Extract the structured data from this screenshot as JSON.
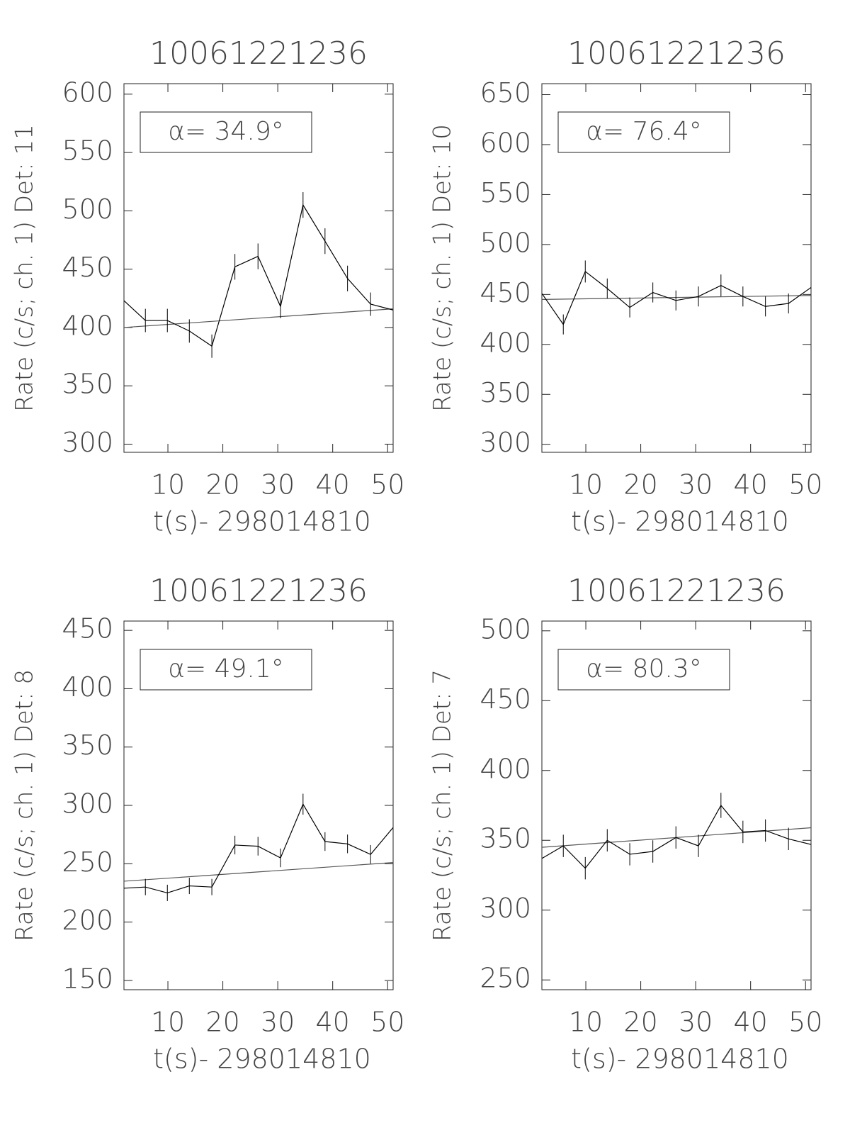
{
  "chart_data": [
    {
      "type": "line",
      "title": "10061221236",
      "y_label": "Rate (c/s; ch. 1) Det: 11",
      "x_label": "t(s)- 298014810",
      "annotation": "α= 34.9°",
      "xlim": [
        2,
        51
      ],
      "ylim": [
        293,
        609
      ],
      "xticks": [
        10,
        20,
        30,
        40,
        50
      ],
      "yticks": [
        300,
        350,
        400,
        450,
        500,
        550,
        600
      ],
      "x": [
        2,
        5.9,
        9.9,
        13.9,
        18,
        22.2,
        26.4,
        30.5,
        34.6,
        38.6,
        42.7,
        46.9,
        51
      ],
      "series": [
        {
          "color": "#000000",
          "values": [
            423,
            406,
            406,
            397,
            384,
            452,
            461,
            418,
            505,
            474,
            442,
            420,
            415
          ],
          "errors": [
            null,
            10,
            10,
            10,
            10,
            11,
            11,
            10,
            11,
            11,
            11,
            10,
            null
          ]
        }
      ],
      "fit": {
        "color": "#555555",
        "x": [
          2,
          51
        ],
        "values": [
          400,
          416
        ]
      }
    },
    {
      "type": "line",
      "title": "10061221236",
      "y_label": "Rate (c/s; ch. 1) Det: 10",
      "x_label": "t(s)- 298014810",
      "annotation": "α= 76.4°",
      "xlim": [
        2,
        51
      ],
      "ylim": [
        292,
        661
      ],
      "xticks": [
        10,
        20,
        30,
        40,
        50
      ],
      "yticks": [
        300,
        350,
        400,
        450,
        500,
        550,
        600,
        650
      ],
      "x": [
        2,
        5.9,
        9.9,
        13.9,
        18,
        22.2,
        26.4,
        30.5,
        34.6,
        38.6,
        42.7,
        46.9,
        51
      ],
      "series": [
        {
          "color": "#000000",
          "values": [
            451,
            420,
            473,
            456,
            437,
            452,
            444,
            448,
            459,
            448,
            438,
            441,
            457
          ],
          "errors": [
            null,
            10,
            11,
            10,
            10,
            10,
            10,
            10,
            11,
            10,
            10,
            10,
            null
          ]
        }
      ],
      "fit": {
        "color": "#555555",
        "x": [
          2,
          51
        ],
        "values": [
          445,
          449
        ]
      }
    },
    {
      "type": "line",
      "title": "10061221236",
      "y_label": "Rate (c/s; ch. 1) Det: 8",
      "x_label": "t(s)- 298014810",
      "annotation": "α= 49.1°",
      "xlim": [
        2,
        51
      ],
      "ylim": [
        142,
        458
      ],
      "xticks": [
        10,
        20,
        30,
        40,
        50
      ],
      "yticks": [
        150,
        200,
        250,
        300,
        350,
        400,
        450
      ],
      "x": [
        2,
        5.9,
        9.9,
        13.9,
        18,
        22.2,
        26.4,
        30.5,
        34.6,
        38.6,
        42.7,
        46.9,
        51
      ],
      "series": [
        {
          "color": "#000000",
          "values": [
            229,
            230,
            225,
            231,
            230,
            266,
            265,
            255,
            301,
            269,
            267,
            258,
            281
          ],
          "errors": [
            null,
            7,
            7,
            7,
            7,
            8,
            8,
            8,
            9,
            8,
            8,
            8,
            null
          ]
        }
      ],
      "fit": {
        "color": "#555555",
        "x": [
          2,
          51
        ],
        "values": [
          235,
          251
        ]
      }
    },
    {
      "type": "line",
      "title": "10061221236",
      "y_label": "Rate (c/s; ch. 1) Det: 7",
      "x_label": "t(s)- 298014810",
      "annotation": "α= 80.3°",
      "xlim": [
        2,
        51
      ],
      "ylim": [
        243,
        507
      ],
      "xticks": [
        10,
        20,
        30,
        40,
        50
      ],
      "yticks": [
        250,
        300,
        350,
        400,
        450,
        500
      ],
      "x": [
        2,
        5.9,
        9.9,
        13.9,
        18,
        22.2,
        26.4,
        30.5,
        34.6,
        38.6,
        42.7,
        46.9,
        51
      ],
      "series": [
        {
          "color": "#000000",
          "values": [
            337,
            346,
            330,
            350,
            340,
            342,
            352,
            346,
            375,
            356,
            357,
            351,
            347
          ],
          "errors": [
            null,
            8,
            8,
            8,
            8,
            8,
            8,
            8,
            9,
            8,
            8,
            8,
            null
          ]
        }
      ],
      "fit": {
        "color": "#555555",
        "x": [
          2,
          51
        ],
        "values": [
          345,
          359
        ]
      }
    }
  ]
}
